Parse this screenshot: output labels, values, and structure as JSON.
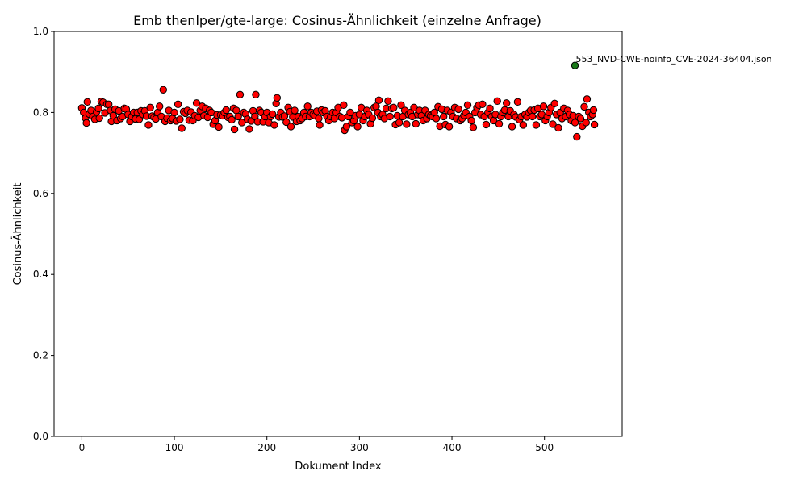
{
  "chart_data": {
    "type": "scatter",
    "title": "Emb thenlper/gte-large: Cosinus-Ähnlichkeit (einzelne Anfrage)",
    "xlabel": "Dokument Index",
    "ylabel": "Cosinus-Ähnlichkeit",
    "xlim": [
      -30,
      584
    ],
    "ylim": [
      0.0,
      1.0
    ],
    "xticks": [
      0,
      100,
      200,
      300,
      400,
      500
    ],
    "yticks": [
      0.0,
      0.2,
      0.4,
      0.6,
      0.8,
      1.0
    ],
    "xtick_labels": [
      "0",
      "100",
      "200",
      "300",
      "400",
      "500"
    ],
    "ytick_labels": [
      "0.0",
      "0.2",
      "0.4",
      "0.6",
      "0.8",
      "1.0"
    ],
    "grid": false,
    "series": [
      {
        "color": "#ff0000",
        "edge_color": "#000000",
        "points": [
          [
            0,
            0.811
          ],
          [
            2,
            0.8
          ],
          [
            4,
            0.786
          ],
          [
            5,
            0.774
          ],
          [
            6,
            0.826
          ],
          [
            8,
            0.796
          ],
          [
            10,
            0.805
          ],
          [
            12,
            0.79
          ],
          [
            14,
            0.783
          ],
          [
            16,
            0.802
          ],
          [
            18,
            0.81
          ],
          [
            19,
            0.786
          ],
          [
            21,
            0.827
          ],
          [
            23,
            0.825
          ],
          [
            25,
            0.799
          ],
          [
            27,
            0.82
          ],
          [
            29,
            0.82
          ],
          [
            31,
            0.805
          ],
          [
            32,
            0.778
          ],
          [
            34,
            0.792
          ],
          [
            36,
            0.808
          ],
          [
            38,
            0.78
          ],
          [
            40,
            0.804
          ],
          [
            42,
            0.785
          ],
          [
            44,
            0.79
          ],
          [
            46,
            0.81
          ],
          [
            48,
            0.808
          ],
          [
            50,
            0.795
          ],
          [
            52,
            0.778
          ],
          [
            54,
            0.79
          ],
          [
            56,
            0.8
          ],
          [
            58,
            0.784
          ],
          [
            60,
            0.8
          ],
          [
            62,
            0.783
          ],
          [
            64,
            0.804
          ],
          [
            66,
            0.795
          ],
          [
            68,
            0.804
          ],
          [
            70,
            0.791
          ],
          [
            72,
            0.769
          ],
          [
            74,
            0.812
          ],
          [
            76,
            0.791
          ],
          [
            78,
            0.788
          ],
          [
            80,
            0.784
          ],
          [
            82,
            0.8
          ],
          [
            84,
            0.815
          ],
          [
            86,
            0.79
          ],
          [
            88,
            0.856
          ],
          [
            90,
            0.778
          ],
          [
            92,
            0.786
          ],
          [
            94,
            0.805
          ],
          [
            96,
            0.78
          ],
          [
            98,
            0.785
          ],
          [
            100,
            0.8
          ],
          [
            102,
            0.779
          ],
          [
            104,
            0.82
          ],
          [
            106,
            0.783
          ],
          [
            108,
            0.761
          ],
          [
            110,
            0.802
          ],
          [
            112,
            0.798
          ],
          [
            114,
            0.805
          ],
          [
            116,
            0.781
          ],
          [
            118,
            0.801
          ],
          [
            120,
            0.78
          ],
          [
            122,
            0.792
          ],
          [
            124,
            0.823
          ],
          [
            126,
            0.788
          ],
          [
            128,
            0.805
          ],
          [
            130,
            0.815
          ],
          [
            132,
            0.792
          ],
          [
            134,
            0.81
          ],
          [
            136,
            0.788
          ],
          [
            138,
            0.805
          ],
          [
            140,
            0.8
          ],
          [
            142,
            0.771
          ],
          [
            144,
            0.78
          ],
          [
            146,
            0.794
          ],
          [
            148,
            0.764
          ],
          [
            150,
            0.794
          ],
          [
            152,
            0.792
          ],
          [
            154,
            0.8
          ],
          [
            156,
            0.806
          ],
          [
            158,
            0.788
          ],
          [
            160,
            0.79
          ],
          [
            162,
            0.782
          ],
          [
            164,
            0.81
          ],
          [
            165,
            0.758
          ],
          [
            167,
            0.805
          ],
          [
            169,
            0.79
          ],
          [
            171,
            0.844
          ],
          [
            173,
            0.775
          ],
          [
            175,
            0.8
          ],
          [
            177,
            0.796
          ],
          [
            179,
            0.783
          ],
          [
            181,
            0.759
          ],
          [
            183,
            0.779
          ],
          [
            185,
            0.804
          ],
          [
            187,
            0.79
          ],
          [
            188,
            0.844
          ],
          [
            190,
            0.777
          ],
          [
            192,
            0.805
          ],
          [
            194,
            0.8
          ],
          [
            196,
            0.777
          ],
          [
            198,
            0.79
          ],
          [
            200,
            0.8
          ],
          [
            202,
            0.775
          ],
          [
            204,
            0.79
          ],
          [
            206,
            0.796
          ],
          [
            208,
            0.769
          ],
          [
            210,
            0.822
          ],
          [
            211,
            0.836
          ],
          [
            213,
            0.789
          ],
          [
            215,
            0.8
          ],
          [
            217,
            0.789
          ],
          [
            219,
            0.791
          ],
          [
            221,
            0.776
          ],
          [
            223,
            0.812
          ],
          [
            225,
            0.802
          ],
          [
            226,
            0.765
          ],
          [
            228,
            0.789
          ],
          [
            230,
            0.805
          ],
          [
            232,
            0.778
          ],
          [
            234,
            0.79
          ],
          [
            236,
            0.78
          ],
          [
            238,
            0.785
          ],
          [
            240,
            0.8
          ],
          [
            242,
            0.79
          ],
          [
            244,
            0.815
          ],
          [
            246,
            0.79
          ],
          [
            248,
            0.8
          ],
          [
            250,
            0.795
          ],
          [
            252,
            0.792
          ],
          [
            254,
            0.803
          ],
          [
            256,
            0.785
          ],
          [
            257,
            0.769
          ],
          [
            259,
            0.806
          ],
          [
            261,
            0.8
          ],
          [
            263,
            0.804
          ],
          [
            265,
            0.79
          ],
          [
            267,
            0.78
          ],
          [
            269,
            0.79
          ],
          [
            271,
            0.8
          ],
          [
            273,
            0.785
          ],
          [
            275,
            0.8
          ],
          [
            277,
            0.812
          ],
          [
            279,
            0.79
          ],
          [
            281,
            0.787
          ],
          [
            283,
            0.818
          ],
          [
            284,
            0.756
          ],
          [
            286,
            0.765
          ],
          [
            288,
            0.79
          ],
          [
            290,
            0.8
          ],
          [
            292,
            0.775
          ],
          [
            294,
            0.78
          ],
          [
            296,
            0.792
          ],
          [
            298,
            0.765
          ],
          [
            300,
            0.795
          ],
          [
            302,
            0.812
          ],
          [
            304,
            0.78
          ],
          [
            306,
            0.79
          ],
          [
            308,
            0.805
          ],
          [
            310,
            0.795
          ],
          [
            312,
            0.772
          ],
          [
            314,
            0.786
          ],
          [
            316,
            0.812
          ],
          [
            318,
            0.815
          ],
          [
            320,
            0.8
          ],
          [
            321,
            0.83
          ],
          [
            323,
            0.79
          ],
          [
            325,
            0.795
          ],
          [
            327,
            0.785
          ],
          [
            329,
            0.81
          ],
          [
            331,
            0.828
          ],
          [
            333,
            0.79
          ],
          [
            335,
            0.81
          ],
          [
            337,
            0.812
          ],
          [
            339,
            0.77
          ],
          [
            341,
            0.792
          ],
          [
            343,
            0.775
          ],
          [
            345,
            0.818
          ],
          [
            347,
            0.79
          ],
          [
            349,
            0.805
          ],
          [
            351,
            0.771
          ],
          [
            353,
            0.795
          ],
          [
            355,
            0.8
          ],
          [
            357,
            0.79
          ],
          [
            359,
            0.812
          ],
          [
            361,
            0.772
          ],
          [
            363,
            0.795
          ],
          [
            365,
            0.805
          ],
          [
            367,
            0.792
          ],
          [
            369,
            0.78
          ],
          [
            371,
            0.805
          ],
          [
            373,
            0.785
          ],
          [
            375,
            0.795
          ],
          [
            377,
            0.792
          ],
          [
            379,
            0.79
          ],
          [
            381,
            0.8
          ],
          [
            383,
            0.785
          ],
          [
            385,
            0.814
          ],
          [
            387,
            0.766
          ],
          [
            389,
            0.808
          ],
          [
            391,
            0.79
          ],
          [
            393,
            0.77
          ],
          [
            395,
            0.805
          ],
          [
            397,
            0.765
          ],
          [
            399,
            0.8
          ],
          [
            401,
            0.79
          ],
          [
            403,
            0.812
          ],
          [
            405,
            0.785
          ],
          [
            407,
            0.808
          ],
          [
            409,
            0.78
          ],
          [
            411,
            0.785
          ],
          [
            413,
            0.793
          ],
          [
            415,
            0.8
          ],
          [
            417,
            0.818
          ],
          [
            419,
            0.79
          ],
          [
            421,
            0.78
          ],
          [
            423,
            0.763
          ],
          [
            425,
            0.8
          ],
          [
            427,
            0.812
          ],
          [
            429,
            0.818
          ],
          [
            431,
            0.795
          ],
          [
            433,
            0.82
          ],
          [
            435,
            0.79
          ],
          [
            437,
            0.77
          ],
          [
            439,
            0.8
          ],
          [
            441,
            0.81
          ],
          [
            443,
            0.79
          ],
          [
            445,
            0.78
          ],
          [
            447,
            0.795
          ],
          [
            449,
            0.828
          ],
          [
            451,
            0.772
          ],
          [
            453,
            0.79
          ],
          [
            455,
            0.8
          ],
          [
            457,
            0.806
          ],
          [
            459,
            0.823
          ],
          [
            461,
            0.79
          ],
          [
            463,
            0.804
          ],
          [
            465,
            0.765
          ],
          [
            467,
            0.795
          ],
          [
            469,
            0.789
          ],
          [
            471,
            0.826
          ],
          [
            473,
            0.782
          ],
          [
            475,
            0.79
          ],
          [
            477,
            0.769
          ],
          [
            479,
            0.795
          ],
          [
            481,
            0.789
          ],
          [
            483,
            0.8
          ],
          [
            485,
            0.805
          ],
          [
            487,
            0.79
          ],
          [
            489,
            0.806
          ],
          [
            491,
            0.769
          ],
          [
            493,
            0.81
          ],
          [
            495,
            0.79
          ],
          [
            497,
            0.795
          ],
          [
            499,
            0.815
          ],
          [
            501,
            0.78
          ],
          [
            503,
            0.79
          ],
          [
            505,
            0.8
          ],
          [
            507,
            0.812
          ],
          [
            509,
            0.771
          ],
          [
            511,
            0.822
          ],
          [
            513,
            0.795
          ],
          [
            515,
            0.762
          ],
          [
            517,
            0.8
          ],
          [
            519,
            0.785
          ],
          [
            521,
            0.81
          ],
          [
            523,
            0.79
          ],
          [
            525,
            0.805
          ],
          [
            527,
            0.795
          ],
          [
            529,
            0.78
          ],
          [
            531,
            0.792
          ],
          [
            533,
            0.775
          ],
          [
            535,
            0.74
          ],
          [
            537,
            0.79
          ],
          [
            539,
            0.785
          ],
          [
            541,
            0.766
          ],
          [
            543,
            0.814
          ],
          [
            545,
            0.775
          ],
          [
            546,
            0.833
          ],
          [
            548,
            0.8
          ],
          [
            550,
            0.79
          ],
          [
            552,
            0.795
          ],
          [
            553,
            0.806
          ],
          [
            554,
            0.77
          ]
        ]
      },
      {
        "color": "#1a7a1a",
        "edge_color": "#000000",
        "points": [
          [
            533,
            0.916
          ]
        ]
      }
    ],
    "annotations": [
      {
        "text": "553_NVD-CWE-noinfo_CVE-2024-36404.json",
        "x": 533,
        "y": 0.916
      }
    ]
  }
}
